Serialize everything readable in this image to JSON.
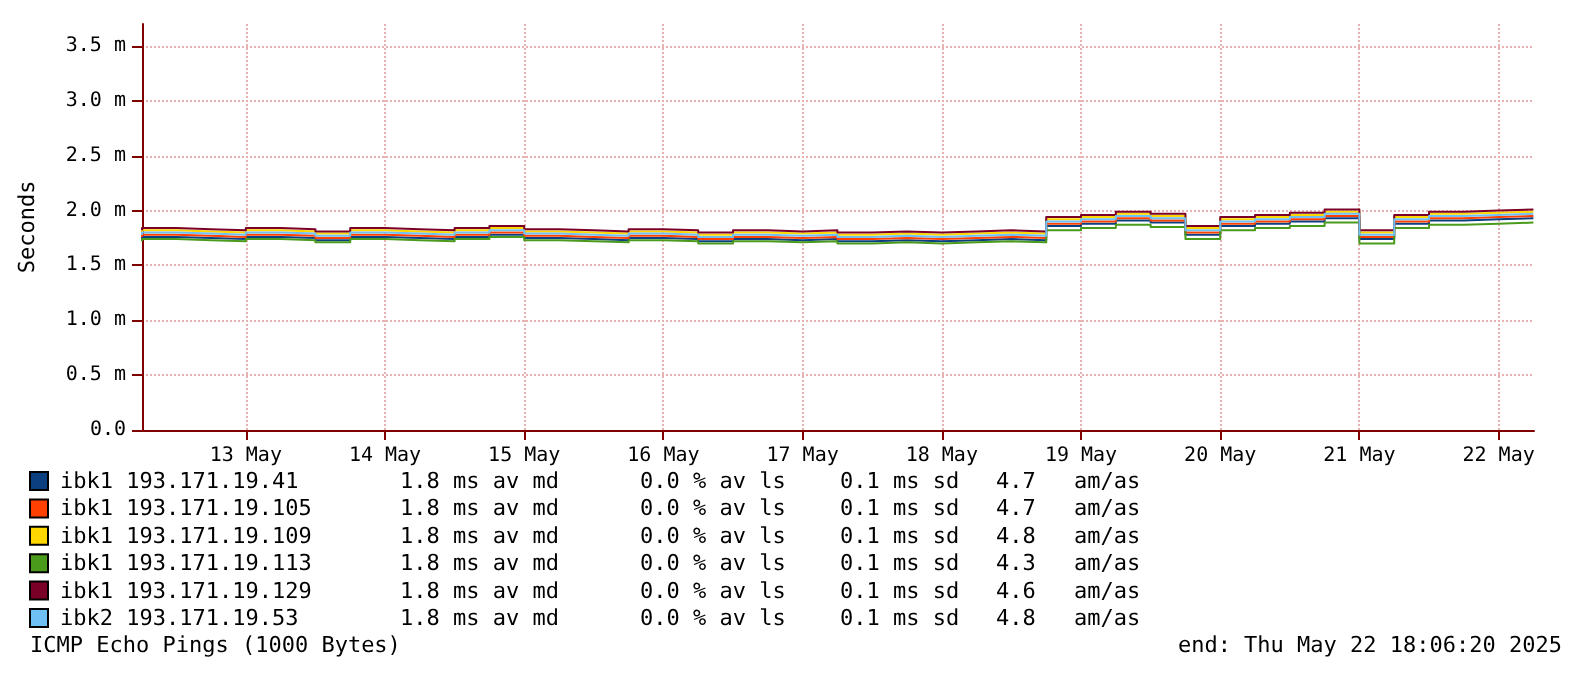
{
  "chart_data": {
    "type": "step",
    "ylabel": "Seconds",
    "legend": "bottom",
    "grid": true,
    "marker": "none",
    "line_style": "solid",
    "xlim": [
      "2025-05-12T18:06",
      "2025-05-22T18:06"
    ],
    "xticks": [
      {
        "value": "2025-05-13T12:00",
        "label": "13 May"
      },
      {
        "value": "2025-05-14T12:00",
        "label": "14 May"
      },
      {
        "value": "2025-05-15T12:00",
        "label": "15 May"
      },
      {
        "value": "2025-05-16T12:00",
        "label": "16 May"
      },
      {
        "value": "2025-05-17T12:00",
        "label": "17 May"
      },
      {
        "value": "2025-05-18T12:00",
        "label": "18 May"
      },
      {
        "value": "2025-05-19T12:00",
        "label": "19 May"
      },
      {
        "value": "2025-05-20T12:00",
        "label": "20 May"
      },
      {
        "value": "2025-05-21T12:00",
        "label": "21 May"
      },
      {
        "value": "2025-05-22T12:00",
        "label": "22 May"
      }
    ],
    "ylim": [
      0,
      3.7
    ],
    "yticks": [
      {
        "value": 0,
        "label": "0.0"
      },
      {
        "value": 0.5,
        "label": "0.5 m"
      },
      {
        "value": 1,
        "label": "1.0 m"
      },
      {
        "value": 1.5,
        "label": "1.5 m"
      },
      {
        "value": 2,
        "label": "2.0 m"
      },
      {
        "value": 2.5,
        "label": "2.5 m"
      },
      {
        "value": 3,
        "label": "3.0 m"
      },
      {
        "value": 3.5,
        "label": "3.5 m"
      }
    ],
    "x": [
      "2025-05-12T18:06",
      "2025-05-13T00:00",
      "2025-05-13T06:00",
      "2025-05-13T12:00",
      "2025-05-13T18:00",
      "2025-05-14T00:00",
      "2025-05-14T06:00",
      "2025-05-14T12:00",
      "2025-05-14T18:00",
      "2025-05-15T00:00",
      "2025-05-15T06:00",
      "2025-05-15T12:00",
      "2025-05-15T18:00",
      "2025-05-16T00:00",
      "2025-05-16T06:00",
      "2025-05-16T12:00",
      "2025-05-16T18:00",
      "2025-05-17T00:00",
      "2025-05-17T06:00",
      "2025-05-17T12:00",
      "2025-05-17T18:00",
      "2025-05-18T00:00",
      "2025-05-18T06:00",
      "2025-05-18T12:00",
      "2025-05-18T18:00",
      "2025-05-19T00:00",
      "2025-05-19T06:00",
      "2025-05-19T12:00",
      "2025-05-19T18:00",
      "2025-05-20T00:00",
      "2025-05-20T06:00",
      "2025-05-20T12:00",
      "2025-05-20T18:00",
      "2025-05-21T00:00",
      "2025-05-21T06:00",
      "2025-05-21T12:00",
      "2025-05-21T18:00",
      "2025-05-22T00:00",
      "2025-05-22T06:00",
      "2025-05-22T12:00",
      "2025-05-22T18:00"
    ],
    "series": [
      {
        "name": "ibk1 193.171.19.41",
        "color": "#0b3f7f",
        "values": [
          1.74,
          1.76,
          1.75,
          1.74,
          1.76,
          1.75,
          1.73,
          1.76,
          1.75,
          1.74,
          1.76,
          1.78,
          1.75,
          1.74,
          1.73,
          1.75,
          1.74,
          1.72,
          1.74,
          1.73,
          1.74,
          1.72,
          1.73,
          1.72,
          1.73,
          1.74,
          1.73,
          1.86,
          1.88,
          1.91,
          1.89,
          1.78,
          1.86,
          1.88,
          1.9,
          1.93,
          1.74,
          1.88,
          1.91,
          1.92,
          1.93
        ]
      },
      {
        "name": "ibk1 193.171.19.105",
        "color": "#ff4000",
        "values": [
          1.76,
          1.78,
          1.77,
          1.76,
          1.78,
          1.77,
          1.75,
          1.78,
          1.77,
          1.76,
          1.78,
          1.8,
          1.77,
          1.76,
          1.75,
          1.77,
          1.76,
          1.74,
          1.76,
          1.75,
          1.76,
          1.74,
          1.75,
          1.74,
          1.75,
          1.76,
          1.75,
          1.88,
          1.9,
          1.93,
          1.91,
          1.8,
          1.88,
          1.9,
          1.92,
          1.95,
          1.76,
          1.9,
          1.93,
          1.94,
          1.95
        ]
      },
      {
        "name": "ibk1 193.171.19.109",
        "color": "#ffd700",
        "values": [
          1.8,
          1.82,
          1.81,
          1.8,
          1.82,
          1.81,
          1.79,
          1.82,
          1.81,
          1.8,
          1.82,
          1.84,
          1.81,
          1.8,
          1.79,
          1.81,
          1.8,
          1.78,
          1.8,
          1.79,
          1.8,
          1.78,
          1.79,
          1.78,
          1.79,
          1.8,
          1.79,
          1.92,
          1.94,
          1.97,
          1.95,
          1.84,
          1.92,
          1.94,
          1.96,
          1.99,
          1.8,
          1.94,
          1.97,
          1.98,
          1.99
        ]
      },
      {
        "name": "ibk1 193.171.19.113",
        "color": "#4a9a1c",
        "values": [
          1.72,
          1.74,
          1.73,
          1.72,
          1.74,
          1.73,
          1.71,
          1.74,
          1.73,
          1.72,
          1.74,
          1.76,
          1.73,
          1.72,
          1.71,
          1.73,
          1.72,
          1.7,
          1.72,
          1.71,
          1.72,
          1.7,
          1.71,
          1.7,
          1.71,
          1.72,
          1.71,
          1.82,
          1.84,
          1.87,
          1.85,
          1.74,
          1.82,
          1.84,
          1.86,
          1.89,
          1.7,
          1.84,
          1.87,
          1.88,
          1.89
        ]
      },
      {
        "name": "ibk1 193.171.19.129",
        "color": "#7a0028",
        "values": [
          1.82,
          1.84,
          1.83,
          1.82,
          1.84,
          1.83,
          1.81,
          1.84,
          1.83,
          1.82,
          1.84,
          1.86,
          1.83,
          1.82,
          1.81,
          1.83,
          1.82,
          1.8,
          1.82,
          1.81,
          1.82,
          1.8,
          1.81,
          1.8,
          1.81,
          1.82,
          1.81,
          1.94,
          1.96,
          1.99,
          1.97,
          1.86,
          1.94,
          1.96,
          1.98,
          2.01,
          1.82,
          1.96,
          1.99,
          2,
          2.01
        ]
      },
      {
        "name": "ibk2 193.171.19.53",
        "color": "#6ec0f5",
        "values": [
          1.78,
          1.8,
          1.79,
          1.78,
          1.8,
          1.79,
          1.77,
          1.8,
          1.79,
          1.78,
          1.8,
          1.82,
          1.79,
          1.78,
          1.77,
          1.79,
          1.78,
          1.76,
          1.78,
          1.77,
          1.78,
          1.76,
          1.77,
          1.76,
          1.77,
          1.78,
          1.77,
          1.9,
          1.92,
          1.95,
          1.93,
          1.82,
          1.9,
          1.92,
          1.94,
          1.97,
          1.78,
          1.92,
          1.95,
          1.96,
          1.97
        ]
      }
    ],
    "annotations": [
      "1.8 ms av md    0.0 % av ls    0.1 ms sd    4.7   am/as",
      "1.8 ms av md    0.0 % av ls    0.1 ms sd    4.7   am/as",
      "1.8 ms av md    0.0 % av ls    0.1 ms sd    4.8   am/as",
      "1.8 ms av md    0.0 % av ls    0.1 ms sd    4.3   am/as",
      "1.8 ms av md    0.0 % av ls    0.1 ms sd    4.6   am/as",
      "1.8 ms av md    0.0 % av ls    0.1 ms sd    4.8   am/as",
      "ICMP Echo Pings (1000 Bytes)",
      "end: Thu May 22 18:06:20 2025"
    ]
  }
}
